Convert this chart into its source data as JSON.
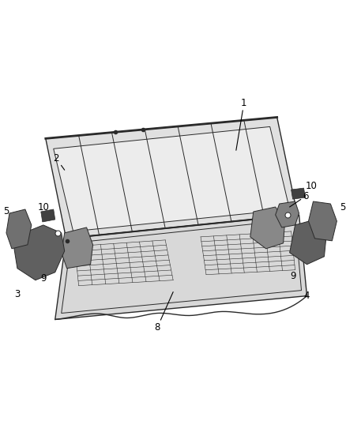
{
  "background_color": "#ffffff",
  "fig_width": 4.38,
  "fig_height": 5.33,
  "dpi": 100,
  "line_color": "#2a2a2a",
  "fill_light": "#e8e8e8",
  "fill_mid": "#c0c0c0",
  "fill_dark": "#888888",
  "fill_darker": "#555555",
  "annotation_color": "#000000",
  "font_size": 8.5
}
